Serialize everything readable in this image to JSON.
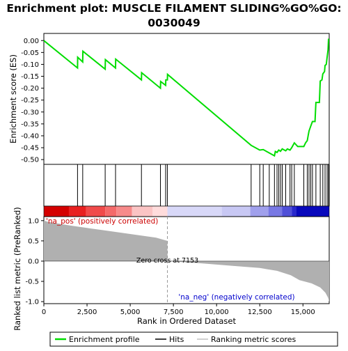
{
  "chart_data": {
    "type": "line",
    "title_line1": "Enrichment plot: MUSCLE FILAMENT SLIDING%GO%GO:",
    "title_line2": "0030049",
    "es_panel": {
      "ylabel": "Enrichment score (ES)",
      "ylim": [
        -0.52,
        0.03
      ],
      "yticks": [
        0.0,
        -0.05,
        -0.1,
        -0.15,
        -0.2,
        -0.25,
        -0.3,
        -0.35,
        -0.4,
        -0.45,
        -0.5
      ],
      "ytick_labels": [
        "0.00",
        "-0.05",
        "-0.10",
        "-0.15",
        "-0.20",
        "-0.25",
        "-0.30",
        "-0.35",
        "-0.40",
        "-0.45",
        "-0.50"
      ],
      "curve": [
        [
          0,
          0.0
        ],
        [
          1950,
          -0.115
        ],
        [
          1960,
          -0.07
        ],
        [
          2250,
          -0.09
        ],
        [
          2260,
          -0.045
        ],
        [
          3550,
          -0.12
        ],
        [
          3560,
          -0.08
        ],
        [
          4150,
          -0.115
        ],
        [
          4160,
          -0.078
        ],
        [
          5650,
          -0.165
        ],
        [
          5660,
          -0.135
        ],
        [
          6750,
          -0.2
        ],
        [
          6760,
          -0.172
        ],
        [
          7050,
          -0.188
        ],
        [
          7060,
          -0.165
        ],
        [
          7150,
          -0.165
        ],
        [
          7160,
          -0.142
        ],
        [
          12000,
          -0.44
        ],
        [
          12500,
          -0.46
        ],
        [
          12700,
          -0.458
        ],
        [
          13050,
          -0.472
        ],
        [
          13350,
          -0.484
        ],
        [
          13400,
          -0.466
        ],
        [
          13500,
          -0.47
        ],
        [
          13600,
          -0.46
        ],
        [
          13700,
          -0.465
        ],
        [
          13800,
          -0.455
        ],
        [
          14000,
          -0.463
        ],
        [
          14100,
          -0.455
        ],
        [
          14250,
          -0.46
        ],
        [
          14350,
          -0.45
        ],
        [
          14500,
          -0.43
        ],
        [
          14700,
          -0.445
        ],
        [
          15050,
          -0.445
        ],
        [
          15150,
          -0.43
        ],
        [
          15250,
          -0.42
        ],
        [
          15300,
          -0.4
        ],
        [
          15350,
          -0.38
        ],
        [
          15450,
          -0.36
        ],
        [
          15550,
          -0.34
        ],
        [
          15700,
          -0.34
        ],
        [
          15750,
          -0.26
        ],
        [
          15950,
          -0.26
        ],
        [
          16000,
          -0.17
        ],
        [
          16100,
          -0.165
        ],
        [
          16150,
          -0.14
        ],
        [
          16250,
          -0.13
        ],
        [
          16280,
          -0.105
        ],
        [
          16350,
          -0.1
        ],
        [
          16400,
          -0.07
        ],
        [
          16450,
          -0.04
        ],
        [
          16480,
          0.005
        ],
        [
          16520,
          0.005
        ]
      ]
    },
    "hits": [
      1950,
      2250,
      3550,
      4150,
      5650,
      6750,
      7050,
      7150,
      12000,
      12500,
      12700,
      13050,
      13350,
      13500,
      13600,
      13700,
      13800,
      14000,
      14250,
      14350,
      14500,
      15050,
      15250,
      15350,
      15450,
      15550,
      15750,
      16000,
      16150,
      16280,
      16400,
      16480
    ],
    "x_axis": {
      "label": "Rank in Ordered Dataset",
      "xlim": [
        0,
        16520
      ],
      "xticks": [
        0,
        2500,
        5000,
        7500,
        10000,
        12500,
        15000
      ],
      "xtick_labels": [
        "0",
        "2,500",
        "5,000",
        "7,500",
        "10,000",
        "12,500",
        "15,000"
      ]
    },
    "metric_panel": {
      "ylabel": "Ranked list metric (PreRanked)",
      "ylim": [
        -1.05,
        1.1
      ],
      "yticks": [
        1.0,
        0.5,
        0.0,
        -0.5,
        -1.0
      ],
      "ytick_labels": [
        "1.0",
        "0.5",
        "0.0",
        "-0.5",
        "-1.0"
      ],
      "profile": [
        [
          0,
          1.0
        ],
        [
          250,
          0.97
        ],
        [
          800,
          0.93
        ],
        [
          1500,
          0.88
        ],
        [
          2500,
          0.82
        ],
        [
          3500,
          0.76
        ],
        [
          4500,
          0.7
        ],
        [
          5500,
          0.64
        ],
        [
          6500,
          0.58
        ],
        [
          7153,
          0.5
        ],
        [
          7160,
          0.0
        ],
        [
          9000,
          -0.05
        ],
        [
          11000,
          -0.12
        ],
        [
          12500,
          -0.17
        ],
        [
          13500,
          -0.24
        ],
        [
          14300,
          -0.35
        ],
        [
          14800,
          -0.47
        ],
        [
          15500,
          -0.55
        ],
        [
          16000,
          -0.65
        ],
        [
          16300,
          -0.78
        ],
        [
          16450,
          -0.9
        ],
        [
          16520,
          -1.0
        ]
      ],
      "zero_cross_label": "Zero cross at 7153",
      "zero_cross": 7153,
      "pos_label": "'na_pos' (positively correlated)",
      "neg_label": "'na_neg' (negatively correlated)"
    },
    "legend": [
      {
        "label": "Enrichment profile",
        "color": "#00dd00"
      },
      {
        "label": "Hits",
        "color": "#000000"
      },
      {
        "label": "Ranking metric scores",
        "color": "#c0c0c0"
      }
    ],
    "colors": {
      "es_line": "#00dd00",
      "hit": "#000000",
      "metric_fill": "#b0b0b0",
      "pos_text": "#cc0000",
      "neg_text": "#0000cc"
    }
  }
}
